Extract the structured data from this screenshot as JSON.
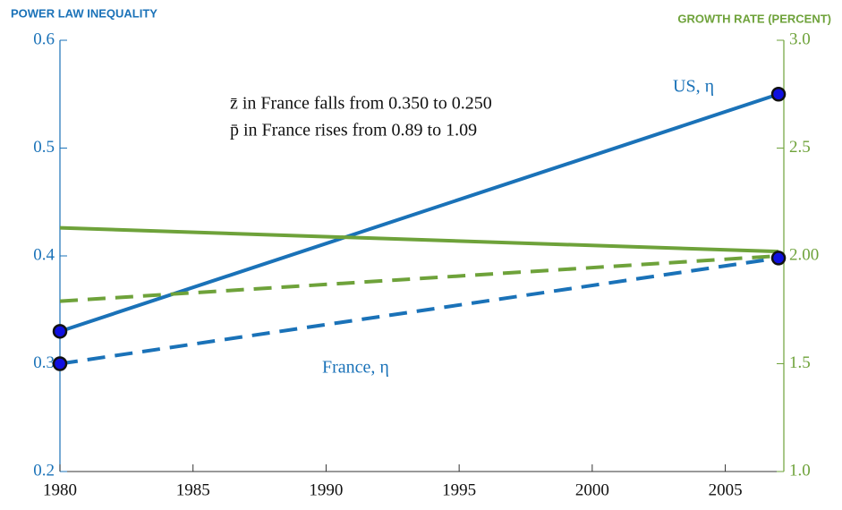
{
  "chart_data": {
    "type": "line",
    "y_axis_label": "POWER LAW INEQUALITY",
    "y2_axis_label": "GROWTH RATE (PERCENT)",
    "x": [
      1980,
      2007
    ],
    "xlim": [
      1980,
      2007.2
    ],
    "xticks": [
      1980,
      1985,
      1990,
      1995,
      2000,
      2005
    ],
    "ylim": [
      0.2,
      0.6
    ],
    "yticks": [
      0.2,
      0.3,
      0.4,
      0.5,
      0.6
    ],
    "y2lim": [
      1.0,
      3.0
    ],
    "y2ticks": [
      {
        "value": 1.0,
        "label": "1.0"
      },
      1.5,
      {
        "value": 2.0,
        "label": "2.00"
      },
      2.5,
      {
        "value": 3.0,
        "label": "3.0"
      }
    ],
    "y_color": "#1a72b8",
    "y2_color": "#6ea23a",
    "series": [
      {
        "color": "#1a72b8",
        "dash": false,
        "markers": true,
        "values": [
          0.33,
          0.55
        ]
      },
      {
        "color": "#1a72b8",
        "dash": true,
        "markers": true,
        "values": [
          0.3,
          0.398
        ]
      },
      {
        "color": "#6ea23a",
        "dash": false,
        "markers": false,
        "axis": "y2",
        "values": [
          2.13,
          2.02
        ]
      },
      {
        "color": "#6ea23a",
        "dash": true,
        "markers": false,
        "axis": "y2",
        "values": [
          1.79,
          2.0
        ]
      }
    ],
    "annotations": [
      {
        "text": "US, η",
        "color": "#1a72b8"
      },
      {
        "text": "France, η",
        "color": "#1a72b8"
      },
      {
        "text": "z̄ in France falls from 0.350 to 0.250",
        "color": "#111111"
      },
      {
        "text": "p̄ in France rises from 0.89 to 1.09",
        "color": "#111111"
      }
    ]
  }
}
